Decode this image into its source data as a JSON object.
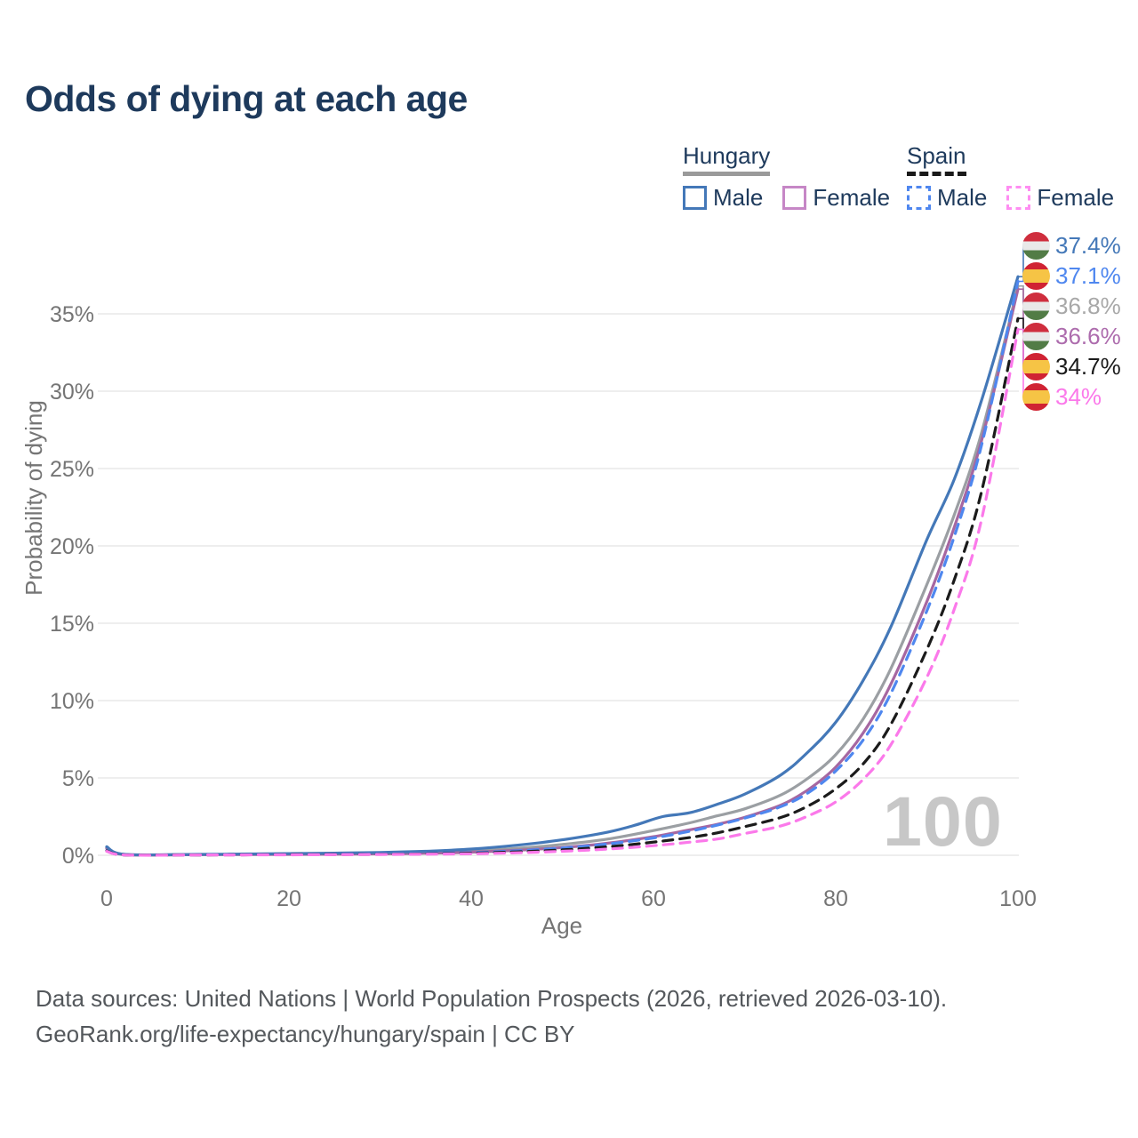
{
  "title": "Odds of dying at each age",
  "watermark": "100",
  "footer": {
    "line1": "Data sources: United Nations | World Population Prospects (2026, retrieved 2026-03-10).",
    "line2": "GeoRank.org/life-expectancy/hungary/spain | CC BY"
  },
  "colors": {
    "title_text": "#1e3a5c",
    "axis_text": "#757575",
    "gridline": "#e9e9e9",
    "watermark": "#c7c7c7",
    "hungary_male": "#4478b8",
    "hungary_female_line": "#a667a1",
    "hungary_female_swatch": "#c687c6",
    "hungary_total": "#9b9fa3",
    "spain_male": "#4f87ef",
    "spain_total": "#1b1b1b",
    "spain_female": "#fb79ea",
    "flag_hungary_stripes": [
      "#cf2e3e",
      "#e9e9e9",
      "#527c46"
    ],
    "flag_spain_stripes": [
      "#d02333",
      "#f6c445"
    ]
  },
  "legend": {
    "groups": [
      {
        "name": "Hungary",
        "underline": "solid",
        "items": [
          {
            "label": "Male",
            "color": "#4478b8",
            "dash": false
          },
          {
            "label": "Female",
            "color": "#c687c6",
            "dash": false
          }
        ]
      },
      {
        "name": "Spain",
        "underline": "dashed",
        "items": [
          {
            "label": "Male",
            "color": "#4f87ef",
            "dash": true
          },
          {
            "label": "Female",
            "color": "#ff8df2",
            "dash": true
          }
        ]
      }
    ]
  },
  "annotations": [
    {
      "label": "37.4%",
      "value": 37.4,
      "flag": "hungary",
      "series": "Hungary Male",
      "color": "#4478b8"
    },
    {
      "label": "37.1%",
      "value": 37.1,
      "flag": "spain",
      "series": "Spain Male",
      "color": "#4f87ef"
    },
    {
      "label": "36.8%",
      "value": 36.8,
      "flag": "hungary",
      "series": "Hungary Both sexes",
      "color": "#a8a8a8"
    },
    {
      "label": "36.6%",
      "value": 36.6,
      "flag": "hungary",
      "series": "Hungary Female",
      "color": "#ad6cad"
    },
    {
      "label": "34.7%",
      "value": 34.7,
      "flag": "spain",
      "series": "Spain Both sexes",
      "color": "#1b1b1b"
    },
    {
      "label": "34%",
      "value": 34.0,
      "flag": "spain",
      "series": "Spain Female",
      "color": "#fb79ea"
    }
  ],
  "chart_data": {
    "type": "line",
    "title": "Odds of dying at each age",
    "xlabel": "Age",
    "ylabel": "Probability of dying",
    "x_ticks": [
      0,
      20,
      40,
      60,
      80,
      100
    ],
    "x_tick_labels": [
      "0",
      "20",
      "40",
      "60",
      "80",
      "100"
    ],
    "xlim": [
      0,
      100
    ],
    "y_ticks": [
      0,
      5,
      10,
      15,
      20,
      25,
      30,
      35
    ],
    "y_tick_labels": [
      "0%",
      "5%",
      "10%",
      "15%",
      "20%",
      "25%",
      "30%",
      "35%"
    ],
    "ylim": [
      0,
      37.5
    ],
    "grid": true,
    "units": "percent",
    "series": [
      {
        "name": "Hungary Both sexes",
        "country": "Hungary",
        "sex": "Both",
        "style": "solid",
        "color": "#9b9fa3",
        "end_value": 36.8,
        "points": [
          [
            0,
            0.5
          ],
          [
            2,
            0.05
          ],
          [
            10,
            0.05
          ],
          [
            15,
            0.06
          ],
          [
            20,
            0.08
          ],
          [
            25,
            0.1
          ],
          [
            30,
            0.13
          ],
          [
            35,
            0.18
          ],
          [
            40,
            0.28
          ],
          [
            45,
            0.45
          ],
          [
            50,
            0.7
          ],
          [
            55,
            1.05
          ],
          [
            60,
            1.6
          ],
          [
            64,
            2.1
          ],
          [
            67,
            2.55
          ],
          [
            70,
            3.0
          ],
          [
            74,
            3.9
          ],
          [
            77,
            5.0
          ],
          [
            80,
            6.5
          ],
          [
            83,
            8.8
          ],
          [
            86,
            12.0
          ],
          [
            90,
            17.5
          ],
          [
            93,
            22.0
          ],
          [
            96,
            27.3
          ],
          [
            100,
            36.8
          ]
        ]
      },
      {
        "name": "Hungary Female",
        "country": "Hungary",
        "sex": "Female",
        "style": "solid",
        "color": "#a667a1",
        "end_value": 36.6,
        "points": [
          [
            0,
            0.45
          ],
          [
            2,
            0.04
          ],
          [
            10,
            0.04
          ],
          [
            15,
            0.05
          ],
          [
            20,
            0.06
          ],
          [
            25,
            0.07
          ],
          [
            30,
            0.09
          ],
          [
            35,
            0.13
          ],
          [
            40,
            0.2
          ],
          [
            45,
            0.32
          ],
          [
            50,
            0.5
          ],
          [
            55,
            0.78
          ],
          [
            60,
            1.2
          ],
          [
            64,
            1.65
          ],
          [
            67,
            2.0
          ],
          [
            70,
            2.45
          ],
          [
            74,
            3.25
          ],
          [
            77,
            4.25
          ],
          [
            80,
            5.7
          ],
          [
            83,
            7.9
          ],
          [
            86,
            11.0
          ],
          [
            90,
            16.4
          ],
          [
            93,
            21.2
          ],
          [
            96,
            26.8
          ],
          [
            100,
            36.6
          ]
        ]
      },
      {
        "name": "Hungary Male",
        "country": "Hungary",
        "sex": "Male",
        "style": "solid",
        "color": "#4478b8",
        "end_value": 37.4,
        "points": [
          [
            0,
            0.55
          ],
          [
            2,
            0.06
          ],
          [
            10,
            0.06
          ],
          [
            15,
            0.08
          ],
          [
            20,
            0.11
          ],
          [
            25,
            0.14
          ],
          [
            30,
            0.18
          ],
          [
            35,
            0.26
          ],
          [
            40,
            0.4
          ],
          [
            45,
            0.65
          ],
          [
            50,
            1.0
          ],
          [
            55,
            1.5
          ],
          [
            58,
            1.95
          ],
          [
            61,
            2.5
          ],
          [
            64,
            2.75
          ],
          [
            67,
            3.3
          ],
          [
            70,
            3.95
          ],
          [
            74,
            5.2
          ],
          [
            77,
            6.7
          ],
          [
            80,
            8.6
          ],
          [
            83,
            11.3
          ],
          [
            86,
            14.7
          ],
          [
            90,
            20.4
          ],
          [
            93,
            24.3
          ],
          [
            96,
            29.4
          ],
          [
            100,
            37.4
          ]
        ]
      },
      {
        "name": "Spain Male",
        "country": "Spain",
        "sex": "Male",
        "style": "dashed",
        "color": "#4f87ef",
        "end_value": 37.1,
        "points": [
          [
            0,
            0.3
          ],
          [
            2,
            0.03
          ],
          [
            10,
            0.03
          ],
          [
            15,
            0.04
          ],
          [
            20,
            0.06
          ],
          [
            25,
            0.07
          ],
          [
            30,
            0.09
          ],
          [
            35,
            0.12
          ],
          [
            40,
            0.18
          ],
          [
            45,
            0.29
          ],
          [
            50,
            0.47
          ],
          [
            55,
            0.73
          ],
          [
            60,
            1.12
          ],
          [
            64,
            1.55
          ],
          [
            67,
            1.95
          ],
          [
            70,
            2.4
          ],
          [
            74,
            3.15
          ],
          [
            77,
            4.05
          ],
          [
            80,
            5.45
          ],
          [
            83,
            7.45
          ],
          [
            86,
            10.4
          ],
          [
            90,
            15.8
          ],
          [
            93,
            20.6
          ],
          [
            96,
            26.5
          ],
          [
            100,
            37.1
          ]
        ]
      },
      {
        "name": "Spain Both sexes",
        "country": "Spain",
        "sex": "Both",
        "style": "dashed",
        "color": "#1b1b1b",
        "end_value": 34.7,
        "points": [
          [
            0,
            0.28
          ],
          [
            2,
            0.025
          ],
          [
            10,
            0.025
          ],
          [
            15,
            0.03
          ],
          [
            20,
            0.04
          ],
          [
            25,
            0.05
          ],
          [
            30,
            0.065
          ],
          [
            35,
            0.09
          ],
          [
            40,
            0.14
          ],
          [
            45,
            0.22
          ],
          [
            50,
            0.35
          ],
          [
            55,
            0.55
          ],
          [
            60,
            0.85
          ],
          [
            64,
            1.15
          ],
          [
            67,
            1.45
          ],
          [
            70,
            1.85
          ],
          [
            74,
            2.45
          ],
          [
            77,
            3.2
          ],
          [
            80,
            4.3
          ],
          [
            83,
            5.9
          ],
          [
            86,
            8.4
          ],
          [
            90,
            13.3
          ],
          [
            93,
            17.8
          ],
          [
            96,
            23.5
          ],
          [
            100,
            34.7
          ]
        ]
      },
      {
        "name": "Spain Female",
        "country": "Spain",
        "sex": "Female",
        "style": "dashed",
        "color": "#fb79ea",
        "end_value": 34.0,
        "points": [
          [
            0,
            0.25
          ],
          [
            2,
            0.02
          ],
          [
            10,
            0.02
          ],
          [
            15,
            0.025
          ],
          [
            20,
            0.03
          ],
          [
            25,
            0.04
          ],
          [
            30,
            0.05
          ],
          [
            35,
            0.07
          ],
          [
            40,
            0.1
          ],
          [
            45,
            0.16
          ],
          [
            50,
            0.26
          ],
          [
            55,
            0.4
          ],
          [
            60,
            0.62
          ],
          [
            64,
            0.85
          ],
          [
            67,
            1.05
          ],
          [
            70,
            1.4
          ],
          [
            74,
            1.9
          ],
          [
            77,
            2.55
          ],
          [
            80,
            3.45
          ],
          [
            83,
            4.9
          ],
          [
            86,
            7.1
          ],
          [
            90,
            11.5
          ],
          [
            93,
            15.9
          ],
          [
            96,
            21.7
          ],
          [
            100,
            34.0
          ]
        ]
      }
    ]
  }
}
